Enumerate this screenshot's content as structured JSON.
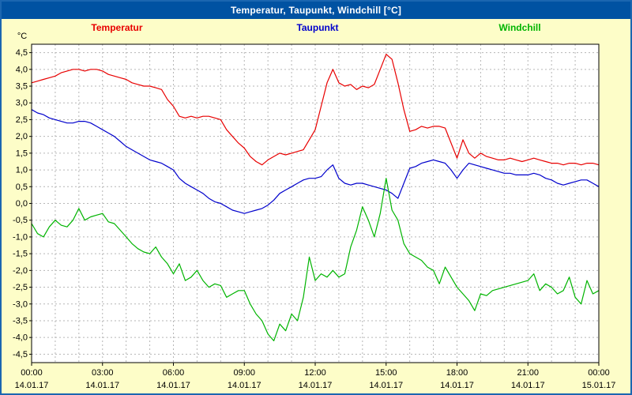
{
  "window": {
    "title": "Temperatur, Taupunkt, Windchill [°C]"
  },
  "chart_data": {
    "type": "line",
    "title": "Temperatur, Taupunkt, Windchill [°C]",
    "ylabel": "°C",
    "xlabel": "",
    "xlim": [
      0,
      24
    ],
    "ylim": [
      -4.75,
      4.75
    ],
    "grid": {
      "x_step_hours": 1,
      "y_step": 0.5,
      "on": true
    },
    "legend_position": "top",
    "y_ticks": [
      {
        "v": 4.5,
        "label": "4,5"
      },
      {
        "v": 4.0,
        "label": "4,0"
      },
      {
        "v": 3.5,
        "label": "3,5"
      },
      {
        "v": 3.0,
        "label": "3,0"
      },
      {
        "v": 2.5,
        "label": "2,5"
      },
      {
        "v": 2.0,
        "label": "2,0"
      },
      {
        "v": 1.5,
        "label": "1,5"
      },
      {
        "v": 1.0,
        "label": "1,0"
      },
      {
        "v": 0.5,
        "label": "0,5"
      },
      {
        "v": 0.0,
        "label": "0,0"
      },
      {
        "v": -0.5,
        "label": "-0,5"
      },
      {
        "v": -1.0,
        "label": "-1,0"
      },
      {
        "v": -1.5,
        "label": "-1,5"
      },
      {
        "v": -2.0,
        "label": "-2,0"
      },
      {
        "v": -2.5,
        "label": "-2,5"
      },
      {
        "v": -3.0,
        "label": "-3,0"
      },
      {
        "v": -3.5,
        "label": "-3,5"
      },
      {
        "v": -4.0,
        "label": "-4,0"
      },
      {
        "v": -4.5,
        "label": "-4,5"
      }
    ],
    "x_ticks": [
      {
        "h": 0,
        "time": "00:00",
        "date": "14.01.17"
      },
      {
        "h": 3,
        "time": "03:00",
        "date": "14.01.17"
      },
      {
        "h": 6,
        "time": "06:00",
        "date": "14.01.17"
      },
      {
        "h": 9,
        "time": "09:00",
        "date": "14.01.17"
      },
      {
        "h": 12,
        "time": "12:00",
        "date": "14.01.17"
      },
      {
        "h": 15,
        "time": "15:00",
        "date": "14.01.17"
      },
      {
        "h": 18,
        "time": "18:00",
        "date": "14.01.17"
      },
      {
        "h": 21,
        "time": "21:00",
        "date": "14.01.17"
      },
      {
        "h": 24,
        "time": "00:00",
        "date": "15.01.17"
      }
    ],
    "series": [
      {
        "name": "Temperatur",
        "color": "#e80000",
        "interval_hours": 0.25,
        "values": [
          3.6,
          3.65,
          3.7,
          3.75,
          3.8,
          3.9,
          3.95,
          4.0,
          4.0,
          3.95,
          4.0,
          4.0,
          3.95,
          3.85,
          3.8,
          3.75,
          3.7,
          3.6,
          3.55,
          3.5,
          3.5,
          3.45,
          3.4,
          3.1,
          2.9,
          2.6,
          2.55,
          2.6,
          2.55,
          2.6,
          2.6,
          2.55,
          2.5,
          2.2,
          2.0,
          1.8,
          1.65,
          1.4,
          1.25,
          1.15,
          1.3,
          1.4,
          1.5,
          1.45,
          1.5,
          1.55,
          1.6,
          1.9,
          2.2,
          2.9,
          3.6,
          4.0,
          3.6,
          3.5,
          3.55,
          3.4,
          3.5,
          3.45,
          3.55,
          4.0,
          4.45,
          4.3,
          3.6,
          2.8,
          2.15,
          2.2,
          2.3,
          2.25,
          2.3,
          2.3,
          2.25,
          1.8,
          1.35,
          1.9,
          1.5,
          1.35,
          1.5,
          1.4,
          1.35,
          1.3,
          1.3,
          1.35,
          1.3,
          1.25,
          1.3,
          1.35,
          1.3,
          1.25,
          1.2,
          1.2,
          1.15,
          1.2,
          1.2,
          1.15,
          1.2,
          1.2,
          1.15
        ]
      },
      {
        "name": "Taupunkt",
        "color": "#0000cc",
        "interval_hours": 0.25,
        "values": [
          2.8,
          2.7,
          2.65,
          2.55,
          2.5,
          2.45,
          2.4,
          2.4,
          2.45,
          2.45,
          2.4,
          2.3,
          2.2,
          2.1,
          2.0,
          1.85,
          1.7,
          1.6,
          1.5,
          1.4,
          1.3,
          1.25,
          1.2,
          1.1,
          1.0,
          0.75,
          0.6,
          0.5,
          0.4,
          0.3,
          0.15,
          0.05,
          0.0,
          -0.1,
          -0.2,
          -0.25,
          -0.3,
          -0.25,
          -0.2,
          -0.15,
          -0.05,
          0.1,
          0.3,
          0.4,
          0.5,
          0.6,
          0.7,
          0.75,
          0.75,
          0.8,
          1.0,
          1.15,
          0.75,
          0.6,
          0.55,
          0.6,
          0.6,
          0.55,
          0.5,
          0.45,
          0.4,
          0.3,
          0.15,
          0.6,
          1.05,
          1.1,
          1.2,
          1.25,
          1.3,
          1.25,
          1.2,
          1.0,
          0.75,
          1.0,
          1.2,
          1.15,
          1.1,
          1.05,
          1.0,
          0.95,
          0.9,
          0.9,
          0.85,
          0.85,
          0.85,
          0.9,
          0.85,
          0.75,
          0.7,
          0.6,
          0.55,
          0.6,
          0.65,
          0.7,
          0.7,
          0.6,
          0.5
        ]
      },
      {
        "name": "Windchill",
        "color": "#00b400",
        "interval_hours": 0.25,
        "values": [
          -0.6,
          -0.9,
          -1.0,
          -0.7,
          -0.5,
          -0.65,
          -0.7,
          -0.5,
          -0.15,
          -0.5,
          -0.4,
          -0.35,
          -0.3,
          -0.55,
          -0.6,
          -0.8,
          -1.0,
          -1.2,
          -1.35,
          -1.45,
          -1.5,
          -1.3,
          -1.6,
          -1.8,
          -2.1,
          -1.8,
          -2.3,
          -2.2,
          -2.0,
          -2.3,
          -2.5,
          -2.4,
          -2.45,
          -2.8,
          -2.7,
          -2.6,
          -2.6,
          -3.0,
          -3.3,
          -3.5,
          -3.9,
          -4.1,
          -3.6,
          -3.8,
          -3.3,
          -3.5,
          -2.8,
          -1.6,
          -2.3,
          -2.1,
          -2.2,
          -2.0,
          -2.2,
          -2.1,
          -1.3,
          -0.8,
          -0.1,
          -0.5,
          -1.0,
          -0.3,
          0.75,
          -0.2,
          -0.5,
          -1.2,
          -1.5,
          -1.6,
          -1.7,
          -1.9,
          -2.0,
          -2.4,
          -1.9,
          -2.2,
          -2.5,
          -2.7,
          -2.9,
          -3.2,
          -2.7,
          -2.75,
          -2.6,
          -2.55,
          -2.5,
          -2.45,
          -2.4,
          -2.35,
          -2.3,
          -2.1,
          -2.6,
          -2.4,
          -2.5,
          -2.7,
          -2.6,
          -2.2,
          -2.8,
          -3.0,
          -2.3,
          -2.7,
          -2.6
        ]
      }
    ]
  }
}
